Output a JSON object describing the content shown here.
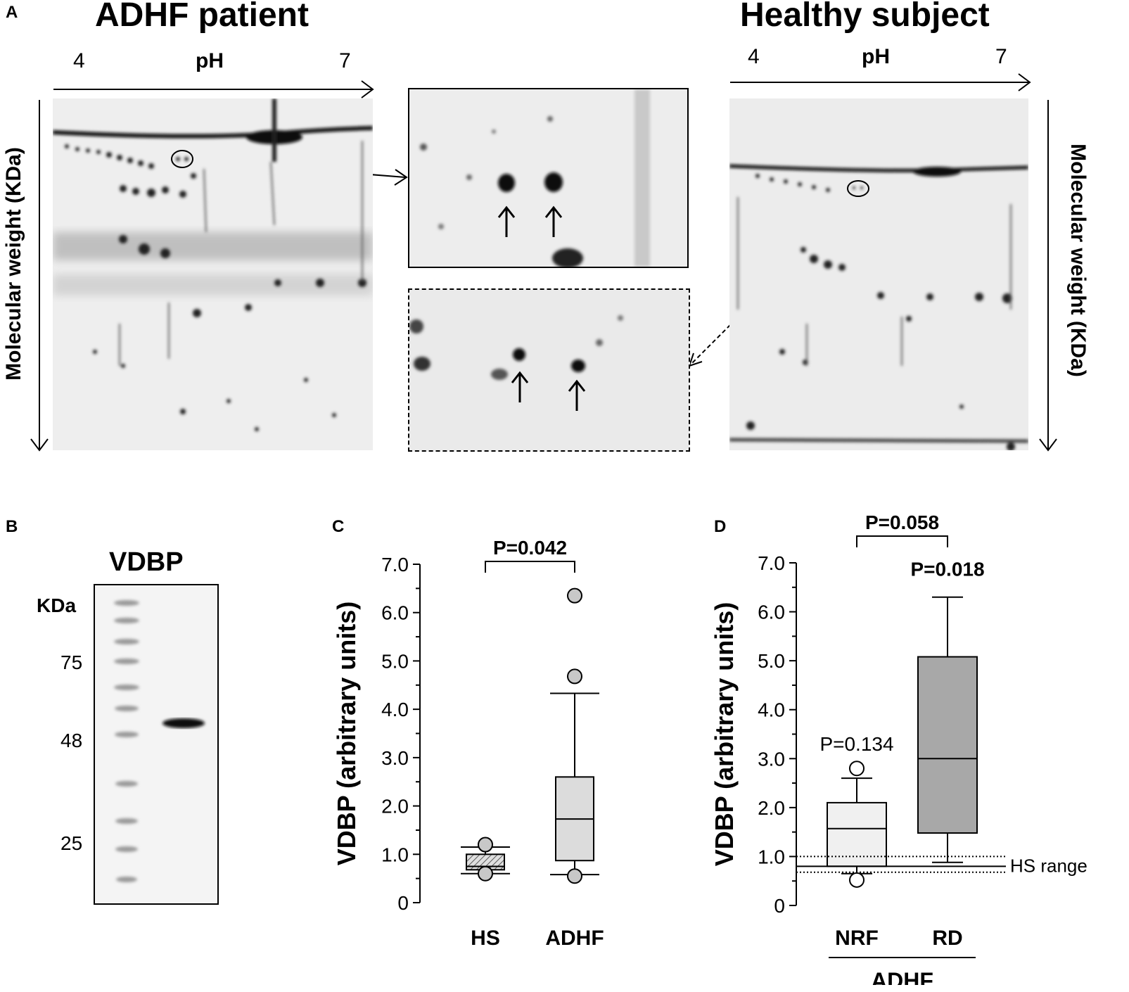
{
  "panel_letters": {
    "a": "A",
    "b": "B",
    "c": "C",
    "d": "D"
  },
  "panel_a": {
    "left_title": "ADHF patient",
    "right_title": "Healthy subject",
    "ph_label": "pH",
    "ph_low": "4",
    "ph_high": "7",
    "y_label": "Molecular weight (KDa)"
  },
  "panel_b": {
    "title": "VDBP",
    "unit": "KDa",
    "markers": [
      "75",
      "48",
      "25"
    ],
    "band_kda": 52
  },
  "chart_data": [
    {
      "panel": "C",
      "type": "box",
      "categories": [
        "HS",
        "ADHF"
      ],
      "ylabel": "VDBP (arbitrary units)",
      "ylim": [
        0,
        7.0
      ],
      "yticks": [
        "0",
        "1.0",
        "2.0",
        "3.0",
        "4.0",
        "5.0",
        "6.0",
        "7.0"
      ],
      "boxes": [
        {
          "category": "HS",
          "q1": 0.68,
          "median": 0.75,
          "q3": 1.0,
          "whisker_low": 0.6,
          "whisker_high": 1.15,
          "outliers": [
            1.2,
            0.6
          ],
          "fill": "#cfcfcf",
          "hatched": true
        },
        {
          "category": "ADHF",
          "q1": 0.87,
          "median": 1.73,
          "q3": 2.6,
          "whisker_low": 0.58,
          "whisker_high": 4.33,
          "outliers": [
            6.35,
            4.68,
            0.55
          ],
          "fill": "#dcdcdc",
          "hatched": false
        }
      ],
      "comparisons": [
        {
          "between": [
            "HS",
            "ADHF"
          ],
          "label": "P=0.042"
        }
      ]
    },
    {
      "panel": "D",
      "type": "box",
      "categories": [
        "NRF",
        "RD"
      ],
      "group_label": "ADHF",
      "ylabel": "VDBP (arbitrary units)",
      "ylim": [
        0,
        7.0
      ],
      "yticks": [
        "0",
        "1.0",
        "2.0",
        "3.0",
        "4.0",
        "5.0",
        "6.0",
        "7.0"
      ],
      "boxes": [
        {
          "category": "NRF",
          "q1": 0.8,
          "median": 1.57,
          "q3": 2.1,
          "whisker_low": 0.65,
          "whisker_high": 2.6,
          "outliers": [
            2.8,
            0.52
          ],
          "fill": "#f0f0f0",
          "hatched": false,
          "annotation": "P=0.134"
        },
        {
          "category": "RD",
          "q1": 1.48,
          "median": 3.0,
          "q3": 5.08,
          "whisker_low": 0.88,
          "whisker_high": 6.3,
          "outliers": [],
          "fill": "#a8a8a8",
          "hatched": false,
          "annotation": "P=0.018"
        }
      ],
      "comparisons": [
        {
          "between": [
            "NRF",
            "RD"
          ],
          "label": "P=0.058"
        }
      ],
      "reference": {
        "label": "HS range",
        "low": 0.68,
        "median": 0.8,
        "high": 1.0
      }
    }
  ]
}
